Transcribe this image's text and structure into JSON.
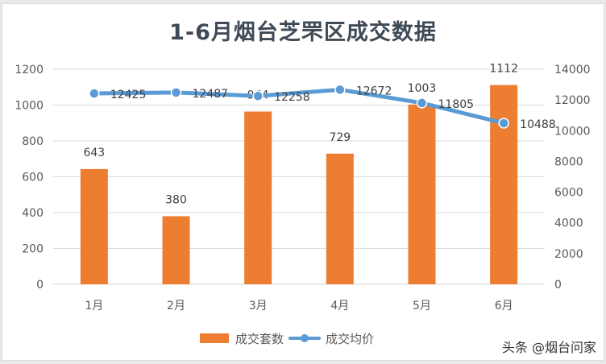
{
  "title": "1-6月烟台芝罘区成交数据",
  "watermark": "头条 @烟台问家",
  "legend": {
    "bar_label": "成交套数",
    "line_label": "成交均价"
  },
  "colors": {
    "bar": "#ed7d31",
    "line": "#5b9bd5",
    "grid": "#d9d9d9"
  },
  "chart_data": {
    "type": "bar+line",
    "title": "1-6月烟台芝罘区成交数据",
    "categories": [
      "1月",
      "2月",
      "3月",
      "4月",
      "5月",
      "6月"
    ],
    "series": [
      {
        "name": "成交套数",
        "type": "bar",
        "axis": "left",
        "values": [
          643,
          380,
          964,
          729,
          1003,
          1112
        ]
      },
      {
        "name": "成交均价",
        "type": "line",
        "axis": "right",
        "values": [
          12425,
          12487,
          12258,
          12672,
          11805,
          10488
        ]
      }
    ],
    "left_axis": {
      "ticks": [
        0,
        200,
        400,
        600,
        800,
        1000,
        1200
      ],
      "ylim": [
        0,
        1200
      ]
    },
    "right_axis": {
      "ticks": [
        0,
        2000,
        4000,
        6000,
        8000,
        10000,
        12000,
        14000
      ],
      "ylim": [
        0,
        14000
      ]
    },
    "grid": true,
    "legend_position": "bottom",
    "data_labels": true
  }
}
